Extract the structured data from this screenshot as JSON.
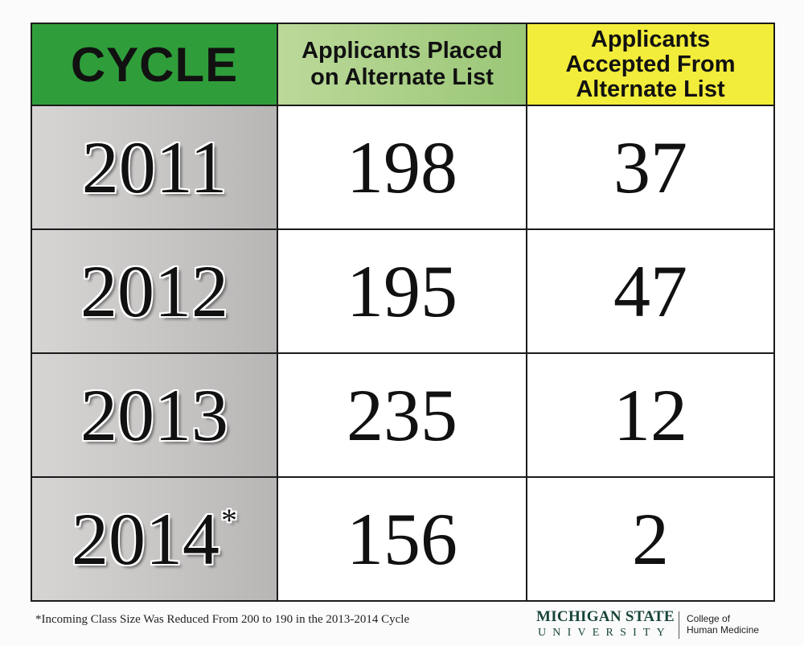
{
  "chart_data": {
    "type": "table",
    "columns": [
      "CYCLE",
      "Applicants Placed\non Alternate List",
      "Applicants\nAccepted From\nAlternate List"
    ],
    "rows": [
      {
        "cycle": "2011",
        "marker": "",
        "placed": "198",
        "accepted": "37"
      },
      {
        "cycle": "2012",
        "marker": "",
        "placed": "195",
        "accepted": "47"
      },
      {
        "cycle": "2013",
        "marker": "",
        "placed": "235",
        "accepted": "12"
      },
      {
        "cycle": "2014",
        "marker": "*",
        "placed": "156",
        "accepted": "2"
      }
    ],
    "footnote": "*Incoming Class Size Was Reduced From 200 to 190 in the 2013-2014 Cycle"
  },
  "colors": {
    "cycle_header": "#2f9e3a",
    "placed_header": "#9ac776",
    "accepted_header": "#f2ec3a",
    "cycle_cells": "#c7c5c4",
    "brand_green": "#18453b"
  },
  "logo": {
    "institution": "MICHIGAN STATE",
    "institution_sub": "UNIVERSITY",
    "college_line1": "College of",
    "college_line2": "Human Medicine"
  }
}
